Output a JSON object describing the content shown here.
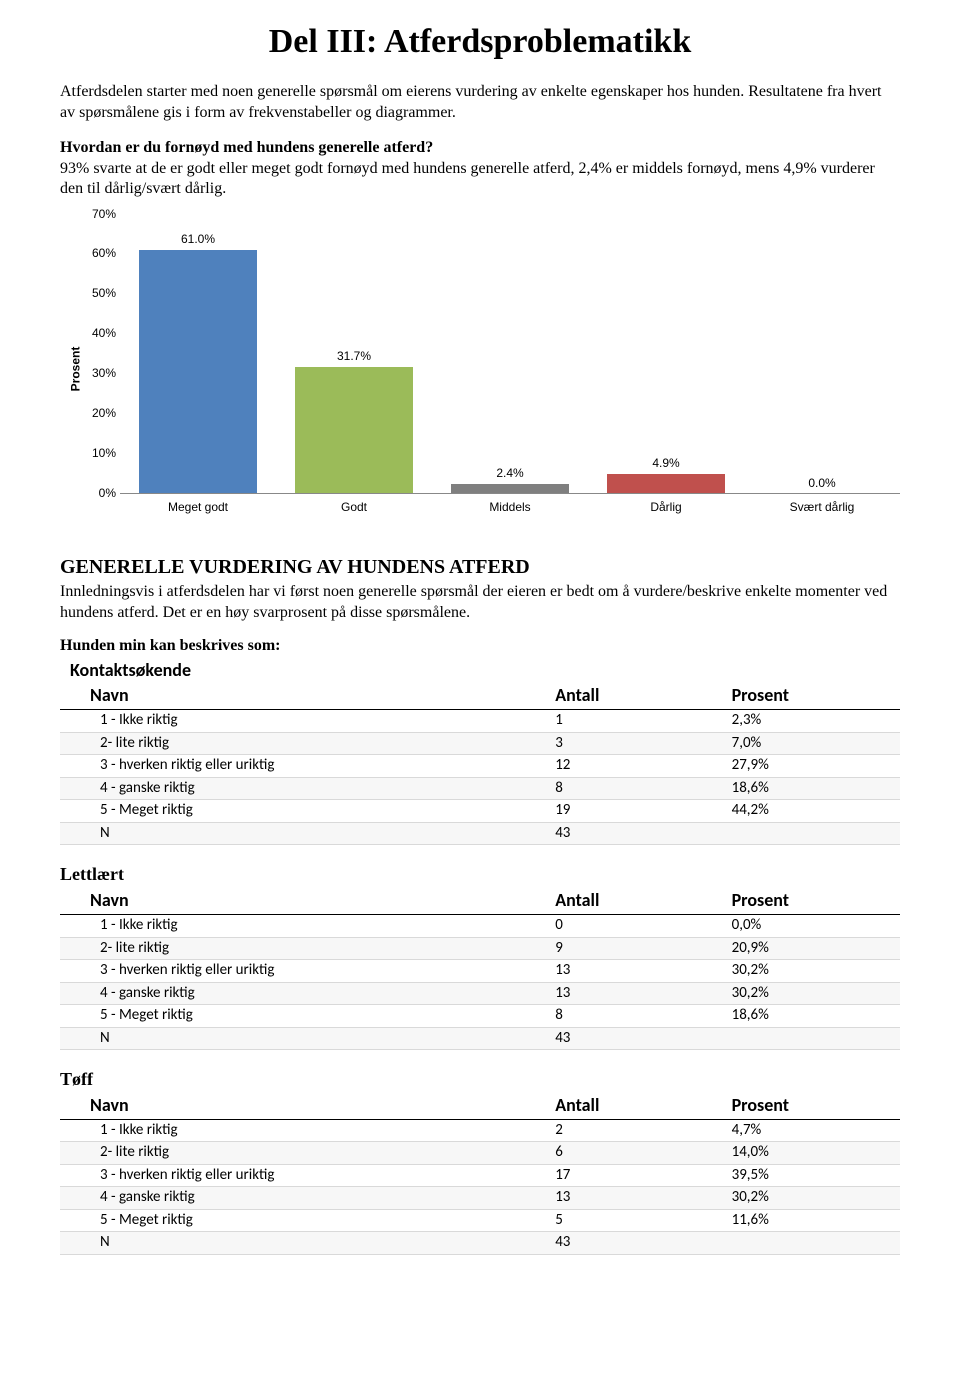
{
  "title": "Del III: Atferdsproblematikk",
  "intro": "Atferdsdelen starter med noen generelle spørsmål om eierens vurdering av enkelte egenskaper hos hunden. Resultatene fra hvert av spørsmålene gis i form av frekvenstabeller og diagrammer.",
  "question1": "Hvordan er du fornøyd med hundens generelle atferd?",
  "answer1": "93% svarte at de er godt eller meget godt fornøyd med hundens generelle atferd, 2,4% er middels fornøyd, mens 4,9% vurderer den til dårlig/svært dårlig.",
  "chart": {
    "type": "bar",
    "ylabel": "Prosent",
    "ymax": 70,
    "ytick_step": 10,
    "yticks": [
      {
        "v": 0,
        "label": "0%"
      },
      {
        "v": 10,
        "label": "10%"
      },
      {
        "v": 20,
        "label": "20%"
      },
      {
        "v": 30,
        "label": "30%"
      },
      {
        "v": 40,
        "label": "40%"
      },
      {
        "v": 50,
        "label": "50%"
      },
      {
        "v": 60,
        "label": "60%"
      },
      {
        "v": 70,
        "label": "70%"
      }
    ],
    "bars": [
      {
        "label": "Meget godt",
        "value": 61.0,
        "display": "61.0%",
        "color": "#4f81bd"
      },
      {
        "label": "Godt",
        "value": 31.7,
        "display": "31.7%",
        "color": "#9bbb59"
      },
      {
        "label": "Middels",
        "value": 2.4,
        "display": "2.4%",
        "color": "#7f7f7f"
      },
      {
        "label": "Dårlig",
        "value": 4.9,
        "display": "4.9%",
        "color": "#c0504d"
      },
      {
        "label": "Svært dårlig",
        "value": 0.0,
        "display": "0.0%",
        "color": "#4bacc6"
      }
    ],
    "background_color": "#ffffff",
    "label_font": "Arial",
    "label_fontsize": 12
  },
  "section_heading": "GENERELLE VURDERING AV HUNDENS ATFERD",
  "section_desc": "Innledningsvis i atferdsdelen har vi først noen generelle spørsmål der eieren er bedt om å vurdere/beskrive enkelte momenter ved hundens atferd. Det er en høy svarprosent på disse spørsmålene.",
  "describe_heading": "Hunden min kan beskrives som:",
  "table_headers": {
    "name": "Navn",
    "count": "Antall",
    "percent": "Prosent"
  },
  "row_labels": {
    "r1": "1 - Ikke riktig",
    "r2": "2- lite riktig",
    "r3": "3 - hverken riktig eller uriktig",
    "r4": "4 - ganske riktig",
    "r5": "5 - Meget riktig",
    "n": "N"
  },
  "tables": [
    {
      "title": "Kontaktsøkende",
      "title_style": "sans",
      "rows": [
        {
          "k": "r1",
          "count": "1",
          "pct": "2,3%"
        },
        {
          "k": "r2",
          "count": "3",
          "pct": "7,0%"
        },
        {
          "k": "r3",
          "count": "12",
          "pct": "27,9%"
        },
        {
          "k": "r4",
          "count": "8",
          "pct": "18,6%"
        },
        {
          "k": "r5",
          "count": "19",
          "pct": "44,2%"
        },
        {
          "k": "n",
          "count": "43",
          "pct": ""
        }
      ]
    },
    {
      "title": "Lettlært",
      "title_style": "serif",
      "rows": [
        {
          "k": "r1",
          "count": "0",
          "pct": "0,0%"
        },
        {
          "k": "r2",
          "count": "9",
          "pct": "20,9%"
        },
        {
          "k": "r3",
          "count": "13",
          "pct": "30,2%"
        },
        {
          "k": "r4",
          "count": "13",
          "pct": "30,2%"
        },
        {
          "k": "r5",
          "count": "8",
          "pct": "18,6%"
        },
        {
          "k": "n",
          "count": "43",
          "pct": ""
        }
      ]
    },
    {
      "title": "Tøff",
      "title_style": "serif",
      "rows": [
        {
          "k": "r1",
          "count": "2",
          "pct": "4,7%"
        },
        {
          "k": "r2",
          "count": "6",
          "pct": "14,0%"
        },
        {
          "k": "r3",
          "count": "17",
          "pct": "39,5%"
        },
        {
          "k": "r4",
          "count": "13",
          "pct": "30,2%"
        },
        {
          "k": "r5",
          "count": "5",
          "pct": "11,6%"
        },
        {
          "k": "n",
          "count": "43",
          "pct": ""
        }
      ]
    }
  ]
}
